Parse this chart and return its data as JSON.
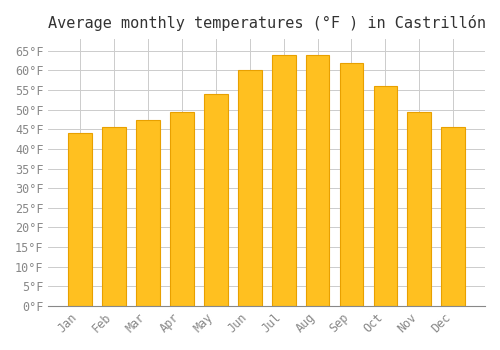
{
  "title": "Average monthly temperatures (°F ) in Castrillón",
  "months": [
    "Jan",
    "Feb",
    "Mar",
    "Apr",
    "May",
    "Jun",
    "Jul",
    "Aug",
    "Sep",
    "Oct",
    "Nov",
    "Dec"
  ],
  "values": [
    44,
    45.5,
    47.5,
    49.5,
    54,
    60,
    64,
    64,
    62,
    56,
    49.5,
    45.5
  ],
  "bar_color": "#FFC020",
  "bar_edge_color": "#E8A000",
  "background_color": "#FFFFFF",
  "grid_color": "#CCCCCC",
  "ylim": [
    0,
    68
  ],
  "yticks": [
    0,
    5,
    10,
    15,
    20,
    25,
    30,
    35,
    40,
    45,
    50,
    55,
    60,
    65
  ],
  "title_fontsize": 11,
  "tick_fontsize": 8.5,
  "tick_color": "#888888",
  "font_family": "monospace"
}
